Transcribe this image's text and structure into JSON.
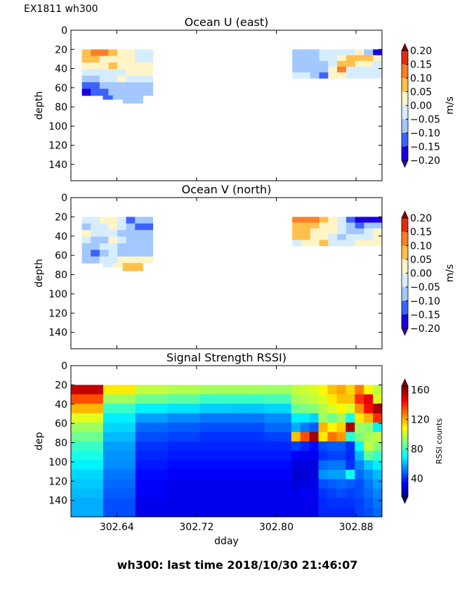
{
  "figure": {
    "suptitle": "EX1811 wh300",
    "footer": "wh300: last time 2018/10/30 21:46:07"
  },
  "chart_data": [
    {
      "type": "heatmap",
      "title": "Ocean U (east)",
      "xlabel": "",
      "ylabel": "depth",
      "xlim": [
        302.594,
        302.906
      ],
      "ylim": [
        157,
        0
      ],
      "yticks": [
        0,
        20,
        40,
        60,
        80,
        100,
        120,
        140
      ],
      "xticks": [
        302.64,
        302.72,
        302.8,
        302.88
      ],
      "colorbar": {
        "label": "m/s",
        "ticks": [
          "0.20",
          "0.15",
          "0.10",
          "0.05",
          "0.00",
          "−0.05",
          "−0.10",
          "−0.15",
          "−0.20"
        ],
        "levels": [
          -0.2,
          -0.15,
          -0.1,
          -0.05,
          0,
          0.05,
          0.1,
          0.15,
          0.2
        ],
        "colors": [
          "#1a00e0",
          "#3c63ff",
          "#a2c8ff",
          "#d6edff",
          "#fff4c6",
          "#ffc04c",
          "#ff7f24",
          "#e62c10"
        ],
        "extend_low": "#3300aa",
        "extend_high": "#800000"
      },
      "blocks": [
        {
          "x0": 302.605,
          "x1": 302.676,
          "d0": 20,
          "d1": 68,
          "rows": [
            [
              0.07,
              0.12,
              0.1,
              0.06,
              0.03,
              0.01,
              -0.03,
              -0.03
            ],
            [
              0.06,
              0.06,
              0.03,
              0.02,
              0.02,
              0.01,
              -0.03,
              -0.03
            ],
            [
              0.02,
              0.02,
              0.01,
              0.06,
              0.02,
              0.01,
              0.01,
              0.01
            ],
            [
              -0.04,
              -0.04,
              -0.03,
              -0.03,
              -0.03,
              0.01,
              0.01,
              0.01
            ],
            [
              -0.08,
              -0.07,
              -0.04,
              -0.04,
              0.02,
              -0.04,
              -0.04,
              -0.03
            ],
            [
              -0.12,
              -0.11,
              -0.07,
              -0.07,
              -0.06,
              -0.08,
              -0.07,
              -0.07
            ],
            [
              -0.18,
              -0.14,
              -0.12,
              -0.08,
              -0.08,
              -0.08,
              -0.07,
              -0.06
            ]
          ]
        },
        {
          "x0": 302.626,
          "x1": 302.646,
          "d0": 68,
          "d1": 72,
          "rows": [
            [
              -0.12,
              -0.08
            ]
          ]
        },
        {
          "x0": 302.646,
          "x1": 302.666,
          "d0": 68,
          "d1": 76,
          "rows": [
            [
              -0.06,
              -0.06
            ]
          ]
        },
        {
          "x0": 302.816,
          "x1": 302.906,
          "d0": 20,
          "d1": 50,
          "rows": [
            [
              -0.06,
              -0.06,
              -0.06,
              -0.04,
              -0.03,
              -0.03,
              -0.02,
              0.02,
              -0.1,
              -0.18
            ],
            [
              -0.08,
              -0.08,
              -0.07,
              -0.04,
              -0.03,
              0.02,
              0.06,
              0.08,
              0.05,
              0.02
            ],
            [
              -0.07,
              -0.08,
              -0.07,
              -0.06,
              -0.02,
              0.06,
              0.07,
              0.03,
              0.01,
              -0.02
            ],
            [
              -0.06,
              -0.06,
              -0.08,
              -0.07,
              0.02,
              0.11,
              -0.01,
              -0.02,
              -0.02,
              -0.04
            ],
            [
              -0.04,
              -0.04,
              -0.06,
              -0.12,
              0.03,
              0.04,
              -0.01,
              -0.02,
              -0.02,
              -0.03
            ]
          ]
        }
      ]
    },
    {
      "type": "heatmap",
      "title": "Ocean V (north)",
      "xlabel": "",
      "ylabel": "depth",
      "xlim": [
        302.594,
        302.906
      ],
      "ylim": [
        157,
        0
      ],
      "yticks": [
        0,
        20,
        40,
        60,
        80,
        100,
        120,
        140
      ],
      "xticks": [
        302.64,
        302.72,
        302.8,
        302.88
      ],
      "colorbar": {
        "label": "m/s",
        "ticks": [
          "0.20",
          "0.15",
          "0.10",
          "0.05",
          "0.00",
          "−0.05",
          "−0.10",
          "−0.15",
          "−0.20"
        ],
        "levels": [
          -0.2,
          -0.15,
          -0.1,
          -0.05,
          0,
          0.05,
          0.1,
          0.15,
          0.2
        ],
        "colors": [
          "#1a00e0",
          "#3c63ff",
          "#a2c8ff",
          "#d6edff",
          "#fff4c6",
          "#ffc04c",
          "#ff7f24",
          "#e62c10"
        ],
        "extend_low": "#3300aa",
        "extend_high": "#800000"
      },
      "blocks": [
        {
          "x0": 302.605,
          "x1": 302.676,
          "d0": 20,
          "d1": 68,
          "rows": [
            [
              -0.04,
              -0.04,
              0.02,
              0.01,
              -0.04,
              -0.12,
              -0.06,
              -0.06
            ],
            [
              -0.06,
              -0.03,
              -0.03,
              0.01,
              -0.04,
              -0.08,
              -0.13,
              -0.13
            ],
            [
              0.02,
              -0.04,
              -0.04,
              -0.03,
              -0.06,
              -0.08,
              -0.08,
              -0.08
            ],
            [
              -0.02,
              -0.08,
              -0.06,
              0.02,
              -0.03,
              -0.06,
              -0.07,
              -0.07
            ],
            [
              -0.07,
              -0.07,
              -0.04,
              -0.03,
              -0.06,
              -0.07,
              -0.07,
              -0.07
            ],
            [
              -0.07,
              -0.12,
              -0.06,
              -0.04,
              -0.06,
              -0.06,
              -0.06,
              -0.06
            ],
            [
              -0.06,
              -0.06,
              -0.04,
              -0.04,
              0.02,
              0.02,
              0.02,
              0.02
            ]
          ]
        },
        {
          "x0": 302.626,
          "x1": 302.646,
          "d0": 68,
          "d1": 72,
          "rows": [
            [
              -0.03,
              0.02
            ]
          ]
        },
        {
          "x0": 302.646,
          "x1": 302.666,
          "d0": 68,
          "d1": 76,
          "rows": [
            [
              0.07,
              0.08
            ]
          ]
        },
        {
          "x0": 302.816,
          "x1": 302.906,
          "d0": 20,
          "d1": 50,
          "rows": [
            [
              0.12,
              0.13,
              0.1,
              0.08,
              0.03,
              -0.03,
              -0.12,
              -0.16,
              -0.16,
              -0.17
            ],
            [
              0.07,
              0.06,
              0.06,
              0.04,
              0.02,
              -0.04,
              -0.1,
              -0.12,
              -0.08,
              -0.1
            ],
            [
              0.07,
              0.07,
              0.04,
              0.02,
              0.02,
              -0.04,
              -0.1,
              -0.06,
              -0.03,
              0.01
            ],
            [
              0.06,
              0.06,
              0.03,
              0.02,
              -0.03,
              -0.06,
              -0.04,
              -0.03,
              -0.02,
              0.01
            ],
            [
              -0.03,
              0.02,
              0.02,
              0.06,
              -0.03,
              -0.03,
              -0.03,
              0.01,
              0.01,
              0.01
            ]
          ]
        }
      ]
    },
    {
      "type": "heatmap",
      "title": "Signal Strength RSSI)",
      "xlabel": "dday",
      "ylabel": "dep",
      "xlim": [
        302.594,
        302.906
      ],
      "ylim": [
        157,
        0
      ],
      "yticks": [
        0,
        20,
        40,
        60,
        80,
        100,
        120,
        140
      ],
      "xticks": [
        302.64,
        302.72,
        302.8,
        302.88
      ],
      "xticklabels": [
        "302.64",
        "302.72",
        "302.80",
        "302.88"
      ],
      "colorbar": {
        "label": "RSSI counts",
        "ticks": [
          "160",
          "120",
          "80",
          "40"
        ],
        "tick_values": [
          160,
          120,
          80,
          40
        ],
        "vmin": 16,
        "vmax": 165,
        "cmap": "jet"
      },
      "blocks": [
        {
          "x0": 302.594,
          "x1": 302.885,
          "d0": 20,
          "d1": 157,
          "cols_x": [
            302.594,
            302.604,
            302.614,
            302.624,
            302.634,
            302.644,
            302.654,
            302.664,
            302.674,
            302.684
          ],
          "rows_note": "RSSI columns left block",
          "rows": [
            [
              155,
              112,
              100,
              98,
              96,
              96,
              95,
              95,
              94
            ],
            [
              135,
              95,
              88,
              85,
              80,
              80,
              82,
              84,
              85
            ],
            [
              120,
              80,
              70,
              68,
              65,
              64,
              66,
              68,
              70
            ],
            [
              105,
              70,
              58,
              55,
              52,
              52,
              55,
              58,
              60
            ],
            [
              95,
              66,
              50,
              48,
              46,
              46,
              50,
              52,
              54
            ],
            [
              88,
              62,
              46,
              44,
              42,
              42,
              44,
              46,
              48
            ],
            [
              80,
              58,
              42,
              40,
              40,
              40,
              40,
              40,
              40
            ],
            [
              75,
              56,
              40,
              38,
              38,
              38,
              38,
              38,
              38
            ],
            [
              70,
              55,
              38,
              36,
              36,
              36,
              36,
              36,
              36
            ],
            [
              66,
              52,
              36,
              34,
              34,
              34,
              34,
              34,
              34
            ],
            [
              64,
              50,
              34,
              32,
              32,
              32,
              32,
              32,
              32
            ],
            [
              62,
              48,
              34,
              32,
              32,
              32,
              32,
              32,
              32
            ],
            [
              60,
              46,
              32,
              32,
              32,
              32,
              32,
              32,
              32
            ],
            [
              60,
              46,
              32,
              32,
              32,
              32,
              32,
              32,
              32
            ]
          ]
        },
        {
          "x0": 302.815,
          "x1": 302.906,
          "d0": 20,
          "d1": 157,
          "rows": [
            [
              100,
              102,
              104,
              110,
              118,
              122,
              115,
              128,
              110,
              100
            ],
            [
              96,
              98,
              100,
              104,
              112,
              118,
              118,
              140,
              150,
              104
            ],
            [
              88,
              90,
              92,
              98,
              104,
              110,
              104,
              125,
              145,
              160
            ],
            [
              70,
              70,
              66,
              95,
              88,
              96,
              75,
              112,
              120,
              140
            ],
            [
              60,
              52,
              48,
              120,
              110,
              116,
              158,
              95,
              92,
              70
            ],
            [
              118,
              135,
              160,
              112,
              130,
              124,
              78,
              90,
              96,
              100
            ],
            [
              44,
              40,
              36,
              46,
              48,
              48,
              42,
              72,
              100,
              92
            ],
            [
              34,
              33,
              32,
              42,
              44,
              44,
              40,
              62,
              86,
              80
            ],
            [
              30,
              30,
              30,
              50,
              52,
              52,
              42,
              54,
              64,
              70
            ],
            [
              28,
              28,
              30,
              56,
              58,
              58,
              74,
              50,
              56,
              62
            ],
            [
              30,
              30,
              32,
              46,
              48,
              50,
              48,
              46,
              52,
              58
            ],
            [
              32,
              34,
              32,
              42,
              44,
              46,
              44,
              46,
              50,
              54
            ],
            [
              32,
              32,
              32,
              40,
              42,
              42,
              42,
              44,
              48,
              52
            ],
            [
              32,
              32,
              32,
              40,
              40,
              40,
              40,
              44,
              46,
              50
            ]
          ]
        }
      ]
    }
  ]
}
